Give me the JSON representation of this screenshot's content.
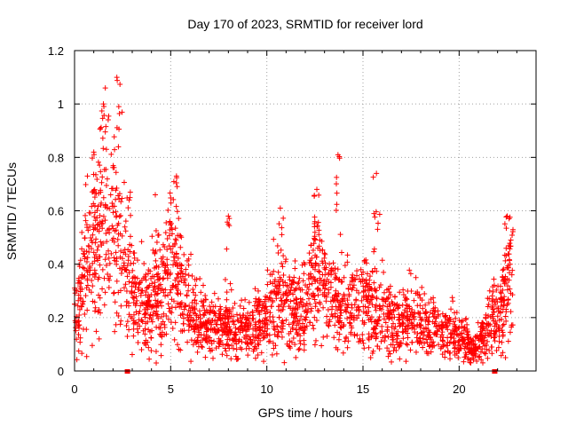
{
  "chart_data": {
    "type": "scatter",
    "title": "Day 170 of 2023, SRMTID for receiver lord",
    "xlabel": "GPS time / hours",
    "ylabel": "SRMTID / TECUs",
    "xlim": [
      0,
      24
    ],
    "ylim": [
      0,
      1.2
    ],
    "xticks": [
      0,
      5,
      10,
      15,
      20
    ],
    "xtick_labels": [
      "0",
      "5",
      "10",
      "15",
      "20"
    ],
    "yticks": [
      0,
      0.2,
      0.4,
      0.6,
      0.8,
      1.0,
      1.2
    ],
    "ytick_labels": [
      "0",
      "0.2",
      "0.4",
      "0.6",
      "0.8",
      "1",
      "1.2"
    ],
    "grid": true,
    "marker": "plus",
    "color": "#ff0000",
    "series": [
      {
        "name": "SRMTID",
        "trend": {
          "x": [
            0.0,
            0.2,
            0.5,
            0.8,
            1.0,
            1.3,
            1.6,
            1.9,
            2.1,
            2.4,
            2.8,
            3.2,
            3.6,
            4.0,
            4.4,
            4.8,
            5.1,
            5.4,
            5.8,
            6.3,
            6.8,
            7.4,
            8.0,
            8.5,
            9.0,
            9.5,
            10.0,
            10.5,
            11.0,
            11.5,
            12.0,
            12.5,
            12.9,
            13.3,
            13.8,
            14.3,
            14.8,
            15.3,
            15.8,
            16.3,
            16.8,
            17.3,
            17.8,
            18.3,
            18.8,
            19.3,
            19.8,
            20.3,
            20.8,
            21.2,
            21.5,
            22.0,
            22.3,
            22.6,
            22.8
          ],
          "y": [
            0.2,
            0.25,
            0.38,
            0.42,
            0.45,
            0.48,
            0.5,
            0.55,
            0.52,
            0.4,
            0.33,
            0.28,
            0.24,
            0.22,
            0.3,
            0.37,
            0.45,
            0.33,
            0.25,
            0.2,
            0.18,
            0.16,
            0.15,
            0.15,
            0.16,
            0.17,
            0.2,
            0.27,
            0.25,
            0.21,
            0.22,
            0.4,
            0.35,
            0.24,
            0.22,
            0.25,
            0.25,
            0.26,
            0.22,
            0.2,
            0.18,
            0.2,
            0.2,
            0.17,
            0.15,
            0.15,
            0.14,
            0.12,
            0.08,
            0.12,
            0.18,
            0.22,
            0.27,
            0.35,
            0.4
          ]
        },
        "peaks": [
          {
            "x": 1.0,
            "y": 0.82
          },
          {
            "x": 1.5,
            "y": 1.0
          },
          {
            "x": 1.6,
            "y": 1.06
          },
          {
            "x": 2.2,
            "y": 1.1
          },
          {
            "x": 2.3,
            "y": 0.99
          },
          {
            "x": 2.9,
            "y": 0.67
          },
          {
            "x": 4.2,
            "y": 0.66
          },
          {
            "x": 5.3,
            "y": 0.73
          },
          {
            "x": 8.0,
            "y": 0.58
          },
          {
            "x": 10.7,
            "y": 0.61
          },
          {
            "x": 12.6,
            "y": 0.68
          },
          {
            "x": 13.7,
            "y": 0.81
          },
          {
            "x": 15.7,
            "y": 0.74
          },
          {
            "x": 22.5,
            "y": 0.58
          }
        ]
      }
    ],
    "data_gaps": [
      {
        "x": 2.75,
        "y": 0
      },
      {
        "x": 21.85,
        "y": 0
      }
    ]
  }
}
